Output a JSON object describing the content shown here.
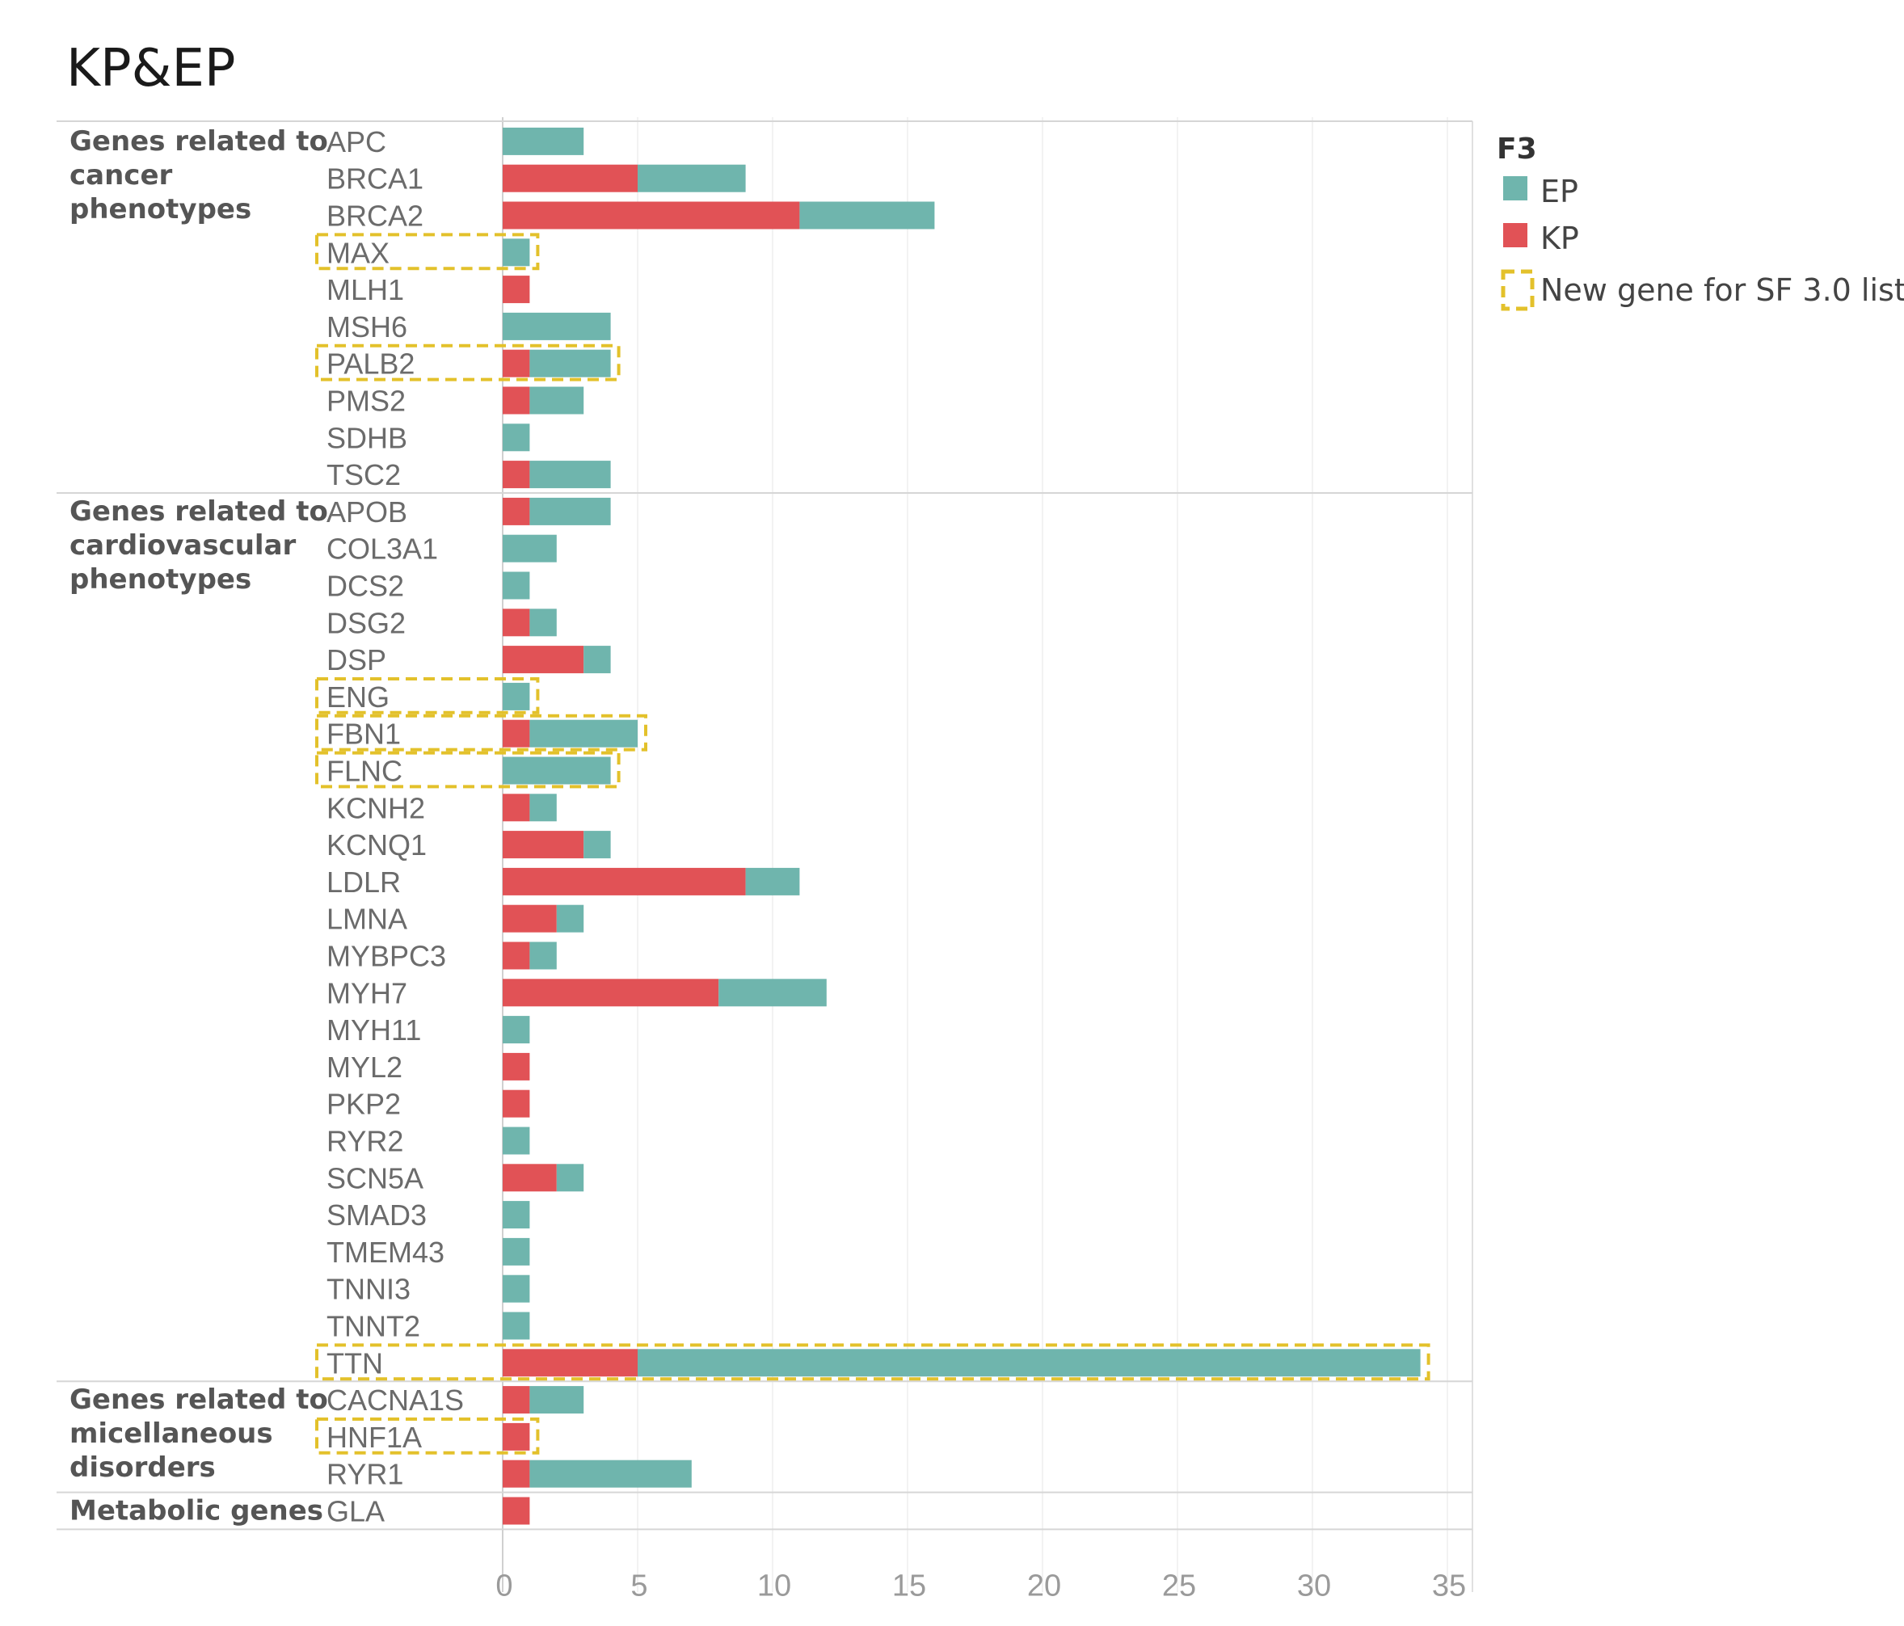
{
  "colors": {
    "EP": "#6fb5ad",
    "KP": "#e15256",
    "highlight": "#e3c12b",
    "grid": "#eeeeee",
    "divider": "#d6d6d6"
  },
  "chart_data": {
    "type": "bar",
    "orientation": "horizontal",
    "stacked": true,
    "title": "KP&EP",
    "xlim": [
      0,
      35
    ],
    "xticks": [
      "0",
      "5",
      "10",
      "15",
      "20",
      "25",
      "30",
      "35"
    ],
    "legend": {
      "title": "F3",
      "placement": "top-right",
      "items": [
        {
          "key": "EP",
          "label": "EP",
          "color": "#6fb5ad"
        },
        {
          "key": "KP",
          "label": "KP",
          "color": "#e15256"
        }
      ],
      "highlight_label": "New gene for SF 3.0 list"
    },
    "groups": [
      {
        "label": "Genes related to cancer phenotypes",
        "lines": [
          "Genes related to",
          "cancer",
          "phenotypes"
        ],
        "genes": [
          "APC",
          "BRCA1",
          "BRCA2",
          "MAX",
          "MLH1",
          "MSH6",
          "PALB2",
          "PMS2",
          "SDHB",
          "TSC2"
        ]
      },
      {
        "label": "Genes related to cardiovascular phenotypes",
        "lines": [
          "Genes related to",
          "cardiovascular",
          "phenotypes"
        ],
        "genes": [
          "APOB",
          "COL3A1",
          "DCS2",
          "DSG2",
          "DSP",
          "ENG",
          "FBN1",
          "FLNC",
          "KCNH2",
          "KCNQ1",
          "LDLR",
          "LMNA",
          "MYBPC3",
          "MYH7",
          "MYH11",
          "MYL2",
          "PKP2",
          "RYR2",
          "SCN5A",
          "SMAD3",
          "TMEM43",
          "TNNI3",
          "TNNT2",
          "TTN"
        ]
      },
      {
        "label": "Genes related to micellaneous disorders",
        "lines": [
          "Genes related to",
          "micellaneous",
          "disorders"
        ],
        "genes": [
          "CACNA1S",
          "HNF1A",
          "RYR1"
        ]
      },
      {
        "label": "Metabolic genes",
        "lines": [
          "Metabolic genes"
        ],
        "genes": [
          "GLA"
        ]
      }
    ],
    "rows": [
      {
        "gene": "APC",
        "KP": 0,
        "EP": 3,
        "new": false
      },
      {
        "gene": "BRCA1",
        "KP": 5,
        "EP": 4,
        "new": false
      },
      {
        "gene": "BRCA2",
        "KP": 11,
        "EP": 5,
        "new": false
      },
      {
        "gene": "MAX",
        "KP": 0,
        "EP": 1,
        "new": true
      },
      {
        "gene": "MLH1",
        "KP": 1,
        "EP": 0,
        "new": false
      },
      {
        "gene": "MSH6",
        "KP": 0,
        "EP": 4,
        "new": false
      },
      {
        "gene": "PALB2",
        "KP": 1,
        "EP": 3,
        "new": true
      },
      {
        "gene": "PMS2",
        "KP": 1,
        "EP": 2,
        "new": false
      },
      {
        "gene": "SDHB",
        "KP": 0,
        "EP": 1,
        "new": false
      },
      {
        "gene": "TSC2",
        "KP": 1,
        "EP": 3,
        "new": false
      },
      {
        "gene": "APOB",
        "KP": 1,
        "EP": 3,
        "new": false
      },
      {
        "gene": "COL3A1",
        "KP": 0,
        "EP": 2,
        "new": false
      },
      {
        "gene": "DCS2",
        "KP": 0,
        "EP": 1,
        "new": false
      },
      {
        "gene": "DSG2",
        "KP": 1,
        "EP": 1,
        "new": false
      },
      {
        "gene": "DSP",
        "KP": 3,
        "EP": 1,
        "new": false
      },
      {
        "gene": "ENG",
        "KP": 0,
        "EP": 1,
        "new": true
      },
      {
        "gene": "FBN1",
        "KP": 1,
        "EP": 4,
        "new": true
      },
      {
        "gene": "FLNC",
        "KP": 0,
        "EP": 4,
        "new": true
      },
      {
        "gene": "KCNH2",
        "KP": 1,
        "EP": 1,
        "new": false
      },
      {
        "gene": "KCNQ1",
        "KP": 3,
        "EP": 1,
        "new": false
      },
      {
        "gene": "LDLR",
        "KP": 9,
        "EP": 2,
        "new": false
      },
      {
        "gene": "LMNA",
        "KP": 2,
        "EP": 1,
        "new": false
      },
      {
        "gene": "MYBPC3",
        "KP": 1,
        "EP": 1,
        "new": false
      },
      {
        "gene": "MYH7",
        "KP": 8,
        "EP": 4,
        "new": false
      },
      {
        "gene": "MYH11",
        "KP": 0,
        "EP": 1,
        "new": false
      },
      {
        "gene": "MYL2",
        "KP": 1,
        "EP": 0,
        "new": false
      },
      {
        "gene": "PKP2",
        "KP": 1,
        "EP": 0,
        "new": false
      },
      {
        "gene": "RYR2",
        "KP": 0,
        "EP": 1,
        "new": false
      },
      {
        "gene": "SCN5A",
        "KP": 2,
        "EP": 1,
        "new": false
      },
      {
        "gene": "SMAD3",
        "KP": 0,
        "EP": 1,
        "new": false
      },
      {
        "gene": "TMEM43",
        "KP": 0,
        "EP": 1,
        "new": false
      },
      {
        "gene": "TNNI3",
        "KP": 0,
        "EP": 1,
        "new": false
      },
      {
        "gene": "TNNT2",
        "KP": 0,
        "EP": 1,
        "new": false
      },
      {
        "gene": "TTN",
        "KP": 5,
        "EP": 29,
        "new": true
      },
      {
        "gene": "CACNA1S",
        "KP": 1,
        "EP": 2,
        "new": false
      },
      {
        "gene": "HNF1A",
        "KP": 1,
        "EP": 0,
        "new": true
      },
      {
        "gene": "RYR1",
        "KP": 1,
        "EP": 6,
        "new": false
      },
      {
        "gene": "GLA",
        "KP": 1,
        "EP": 0,
        "new": false
      }
    ]
  }
}
